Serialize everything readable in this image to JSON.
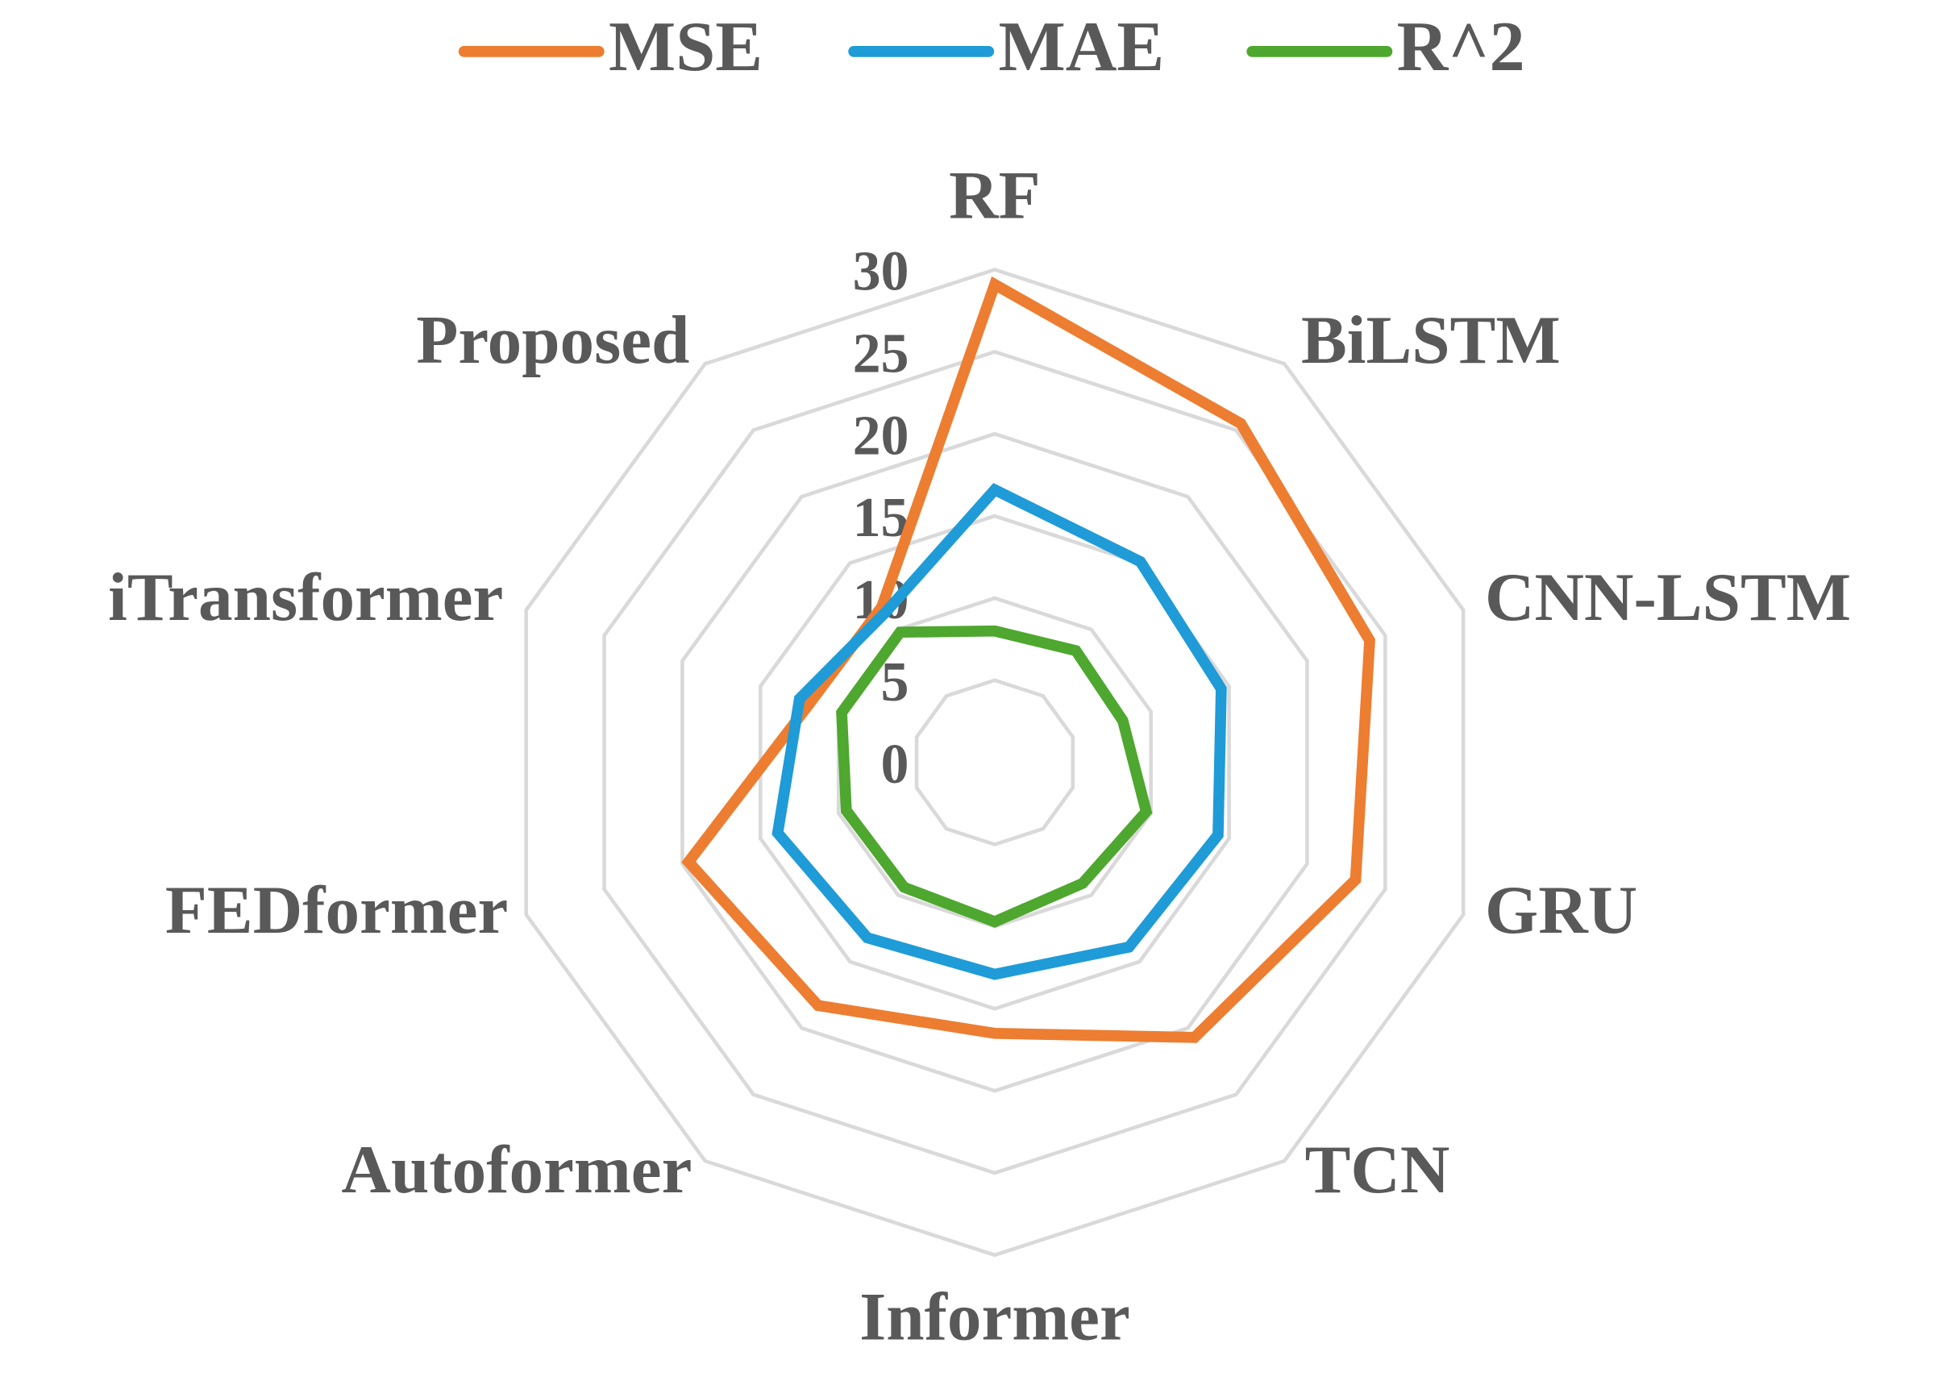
{
  "chart_data": {
    "type": "radar",
    "categories": [
      "RF",
      "BiLSTM",
      "CNN-LSTM",
      "GRU",
      "TCN",
      "Informer",
      "Autoformer",
      "FEDformer",
      "iTransformer",
      "Proposed"
    ],
    "series": [
      {
        "name": "MSE",
        "color": "#ed7d31",
        "values": [
          29.1,
          25.5,
          24.0,
          23.1,
          20.7,
          16.5,
          18.3,
          19.6,
          11.8,
          11.7
        ]
      },
      {
        "name": "MAE",
        "color": "#1f9bd7",
        "values": [
          16.6,
          15.1,
          14.5,
          14.3,
          13.9,
          12.9,
          13.2,
          13.9,
          12.5,
          11.3
        ]
      },
      {
        "name": "R^2",
        "color": "#4ea72e",
        "values": [
          8.0,
          8.4,
          8.2,
          9.7,
          9.1,
          9.7,
          9.4,
          9.5,
          9.8,
          9.8
        ]
      }
    ],
    "ylim": [
      0,
      30
    ],
    "yticks": [
      0,
      5,
      10,
      15,
      20,
      25,
      30
    ],
    "grid": true,
    "legend": "top"
  }
}
